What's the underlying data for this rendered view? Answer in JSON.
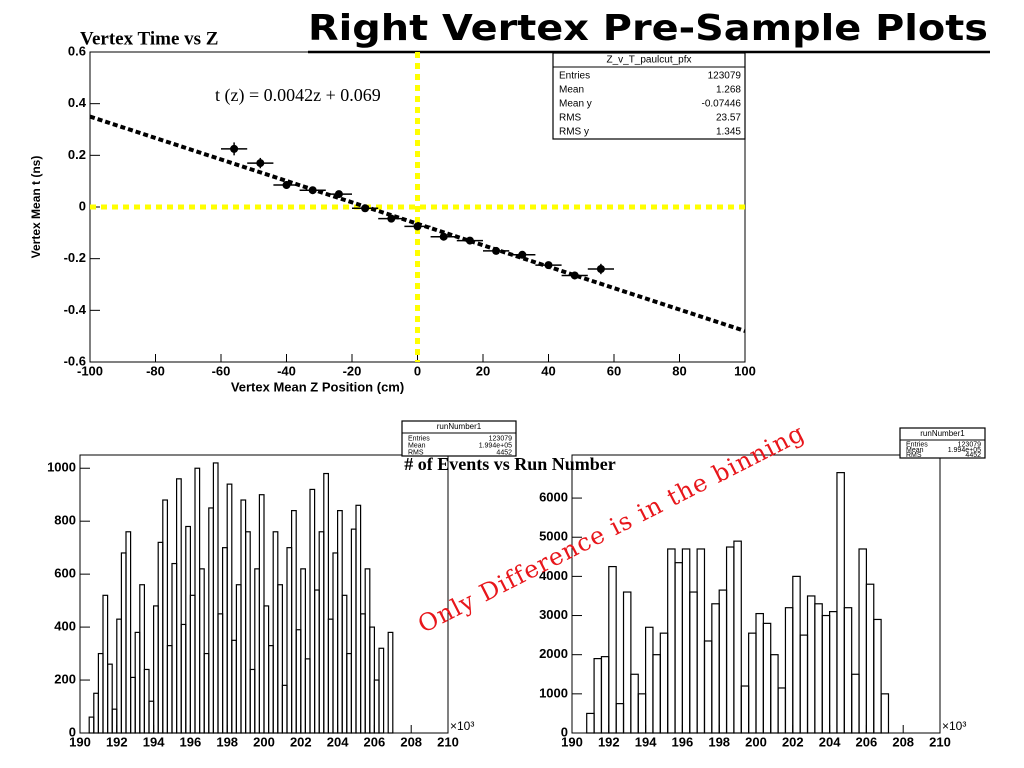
{
  "title": "Right Vertex Pre-Sample Plots",
  "note": "Only Difference is in the binning",
  "chart_data": [
    {
      "type": "scatter",
      "title": "Vertex Time vs Z",
      "x_label": "Vertex Mean Z Position (cm)",
      "y_label": "Vertex Mean t (ns)",
      "color": "#000000",
      "x": [
        -56,
        -48,
        -40,
        -32,
        -24,
        -16,
        -8,
        0,
        8,
        16,
        24,
        32,
        40,
        48,
        56
      ],
      "y": [
        0.225,
        0.17,
        0.085,
        0.065,
        0.05,
        -0.005,
        -0.045,
        -0.075,
        -0.115,
        -0.13,
        -0.17,
        -0.185,
        -0.225,
        -0.265,
        -0.24
      ],
      "xerr": [
        4,
        4,
        4,
        4,
        4,
        4,
        4,
        4,
        4,
        4,
        4,
        4,
        4,
        4,
        4
      ],
      "yerr": [
        0.025,
        0.02,
        0.015,
        0.012,
        0.012,
        0.01,
        0.01,
        0.01,
        0.01,
        0.01,
        0.01,
        0.012,
        0.012,
        0.015,
        0.02
      ],
      "xlim": [
        -100,
        100
      ],
      "xticks": [
        -100,
        -80,
        -60,
        -40,
        -20,
        0,
        20,
        40,
        60,
        80,
        100
      ],
      "ylim": [
        -0.6,
        0.6
      ],
      "yticks": [
        -0.6,
        -0.4,
        -0.2,
        0,
        0.2,
        0.4,
        0.6
      ],
      "fit": {
        "label": "t (z) = 0.0042z + 0.069",
        "x": [
          -100,
          100
        ],
        "y": [
          0.35,
          -0.48
        ]
      },
      "reference_lines": {
        "x": 0,
        "y": 0,
        "color": "#ffff00"
      },
      "stats": {
        "title": "Z_v_T_paulcut_pfx",
        "rows": [
          [
            "Entries",
            "123079"
          ],
          [
            "Mean",
            "1.268"
          ],
          [
            "Mean y",
            "-0.07446"
          ],
          [
            "RMS",
            "23.57"
          ],
          [
            "RMS y",
            "1.345"
          ]
        ]
      }
    },
    {
      "type": "histogram",
      "title": "# of Events vs Run Number",
      "x_multiplier": "×10³",
      "color": "#000000",
      "bins": [
        190.5,
        190.75,
        191,
        191.25,
        191.5,
        191.75,
        192,
        192.25,
        192.5,
        192.75,
        193,
        193.25,
        193.5,
        193.75,
        194,
        194.25,
        194.5,
        194.75,
        195,
        195.25,
        195.5,
        195.75,
        196,
        196.25,
        196.5,
        196.75,
        197,
        197.25,
        197.5,
        197.75,
        198,
        198.25,
        198.5,
        198.75,
        199,
        199.25,
        199.5,
        199.75,
        200,
        200.25,
        200.5,
        200.75,
        201,
        201.25,
        201.5,
        201.75,
        202,
        202.25,
        202.5,
        202.75,
        203,
        203.25,
        203.5,
        203.75,
        204,
        204.25,
        204.5,
        204.75,
        205,
        205.25,
        205.5,
        205.75,
        206,
        206.25,
        206.5,
        206.75,
        207
      ],
      "values": [
        60,
        150,
        300,
        520,
        260,
        90,
        430,
        680,
        760,
        210,
        380,
        560,
        240,
        120,
        480,
        720,
        880,
        330,
        640,
        960,
        410,
        780,
        520,
        1000,
        620,
        300,
        850,
        1020,
        450,
        700,
        940,
        350,
        560,
        880,
        760,
        240,
        620,
        900,
        480,
        330,
        760,
        560,
        180,
        700,
        840,
        390,
        620,
        280,
        920,
        540,
        760,
        980,
        430,
        680,
        840,
        520,
        300,
        770,
        860,
        450,
        620,
        400,
        200,
        320,
        0,
        380
      ],
      "xlim": [
        190,
        210
      ],
      "xticks": [
        190,
        192,
        194,
        196,
        198,
        200,
        202,
        204,
        206,
        208,
        210
      ],
      "ylim": [
        0,
        1050
      ],
      "yticks": [
        0,
        200,
        400,
        600,
        800,
        1000
      ],
      "stats": {
        "title": "runNumber1",
        "rows": [
          [
            "Entries",
            "123079"
          ],
          [
            "Mean",
            "1.994e+05"
          ],
          [
            "RMS",
            "4452"
          ]
        ]
      }
    },
    {
      "type": "histogram",
      "x_multiplier": "×10³",
      "color": "#000000",
      "bins": [
        190.8,
        191.2,
        191.6,
        192.0,
        192.4,
        192.8,
        193.2,
        193.6,
        194.0,
        194.4,
        194.8,
        195.2,
        195.6,
        196.0,
        196.4,
        196.8,
        197.2,
        197.6,
        198.0,
        198.4,
        198.8,
        199.2,
        199.6,
        200.0,
        200.4,
        200.8,
        201.2,
        201.6,
        202.0,
        202.4,
        202.8,
        203.2,
        203.6,
        204.0,
        204.4,
        204.8,
        205.2,
        205.6,
        206.0,
        206.4,
        206.8,
        207.2
      ],
      "values": [
        500,
        1900,
        1950,
        4250,
        750,
        3600,
        1500,
        1000,
        2700,
        2000,
        2550,
        4700,
        4350,
        4700,
        3600,
        4700,
        2350,
        3300,
        3650,
        4750,
        4900,
        1200,
        2550,
        3050,
        2800,
        2000,
        1150,
        3200,
        4000,
        2500,
        3500,
        3300,
        3000,
        3100,
        6650,
        3200,
        1500,
        4700,
        3800,
        2900,
        1000
      ],
      "xlim": [
        190,
        210
      ],
      "xticks": [
        190,
        192,
        194,
        196,
        198,
        200,
        202,
        204,
        206,
        208,
        210
      ],
      "ylim": [
        0,
        7100
      ],
      "yticks": [
        0,
        1000,
        2000,
        3000,
        4000,
        5000,
        6000
      ],
      "stats": {
        "title": "runNumber1",
        "rows": [
          [
            "Entries",
            "123079"
          ],
          [
            "Mean",
            "1.994e+05"
          ],
          [
            "RMS",
            "4452"
          ]
        ]
      }
    }
  ]
}
